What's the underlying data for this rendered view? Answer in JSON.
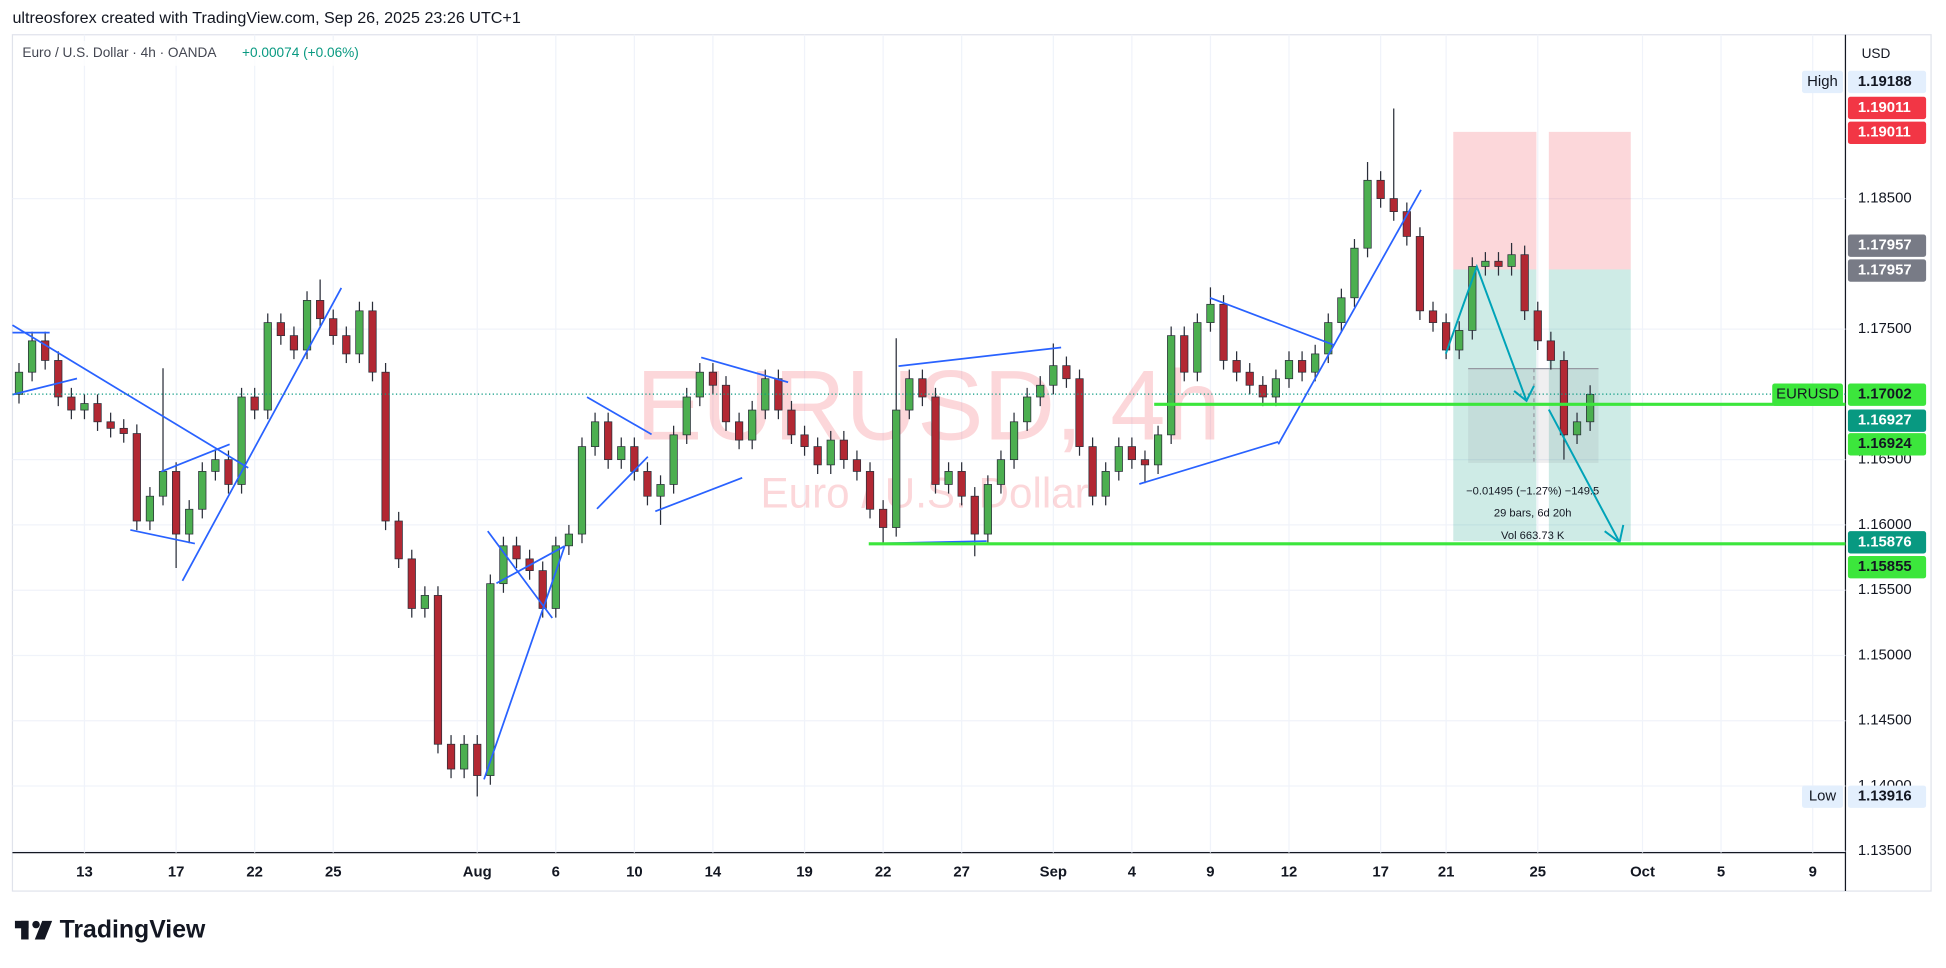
{
  "header": {
    "credit": "ultreosforex created with TradingView.com, Sep 26, 2025 23:26 UTC+1"
  },
  "chart_data": {
    "type": "candlestick",
    "symbol": "Euro / U.S. Dollar · 4h · OANDA",
    "change": "+0.00074 (+0.06%)",
    "watermark": "EURUSD, 4h",
    "watermark_sub": "Euro / U.S. Dollar",
    "currency": "USD",
    "categories": [
      null,
      null,
      null,
      null,
      null,
      "13",
      null,
      null,
      null,
      null,
      null,
      null,
      "17",
      null,
      null,
      null,
      null,
      null,
      "22",
      null,
      null,
      null,
      null,
      null,
      "25",
      null,
      null,
      null,
      null,
      null,
      null,
      null,
      null,
      null,
      null,
      "Aug",
      null,
      null,
      null,
      null,
      null,
      "6",
      null,
      null,
      null,
      null,
      null,
      "10",
      null,
      null,
      null,
      null,
      null,
      "14",
      null,
      null,
      null,
      null,
      null,
      null,
      "19",
      null,
      null,
      null,
      null,
      null,
      "22",
      null,
      null,
      null,
      null,
      null,
      "27",
      null,
      null,
      null,
      null,
      null,
      null,
      "Sep",
      null,
      null,
      null,
      null,
      null,
      "4",
      null,
      null,
      null,
      null,
      null,
      "9",
      null,
      null,
      null,
      null,
      null,
      "12",
      null,
      null,
      null,
      null,
      null,
      null,
      "17",
      null,
      null,
      null,
      null,
      "21",
      null,
      null,
      null,
      null,
      null,
      null,
      "25",
      null,
      null,
      null,
      null,
      null,
      null,
      null,
      "Oct",
      null,
      null,
      null,
      null,
      null,
      "5",
      null,
      null,
      null,
      null,
      null,
      null,
      "9",
      null,
      null
    ],
    "open": [
      1.17,
      1.1717,
      1.1741,
      1.1726,
      1.1698,
      1.1688,
      1.1693,
      1.1679,
      1.1674,
      1.167,
      1.1603,
      1.1622,
      1.1641,
      1.1593,
      1.1612,
      1.1641,
      1.165,
      1.1631,
      1.1698,
      1.1688,
      1.1755,
      1.1745,
      1.1734,
      1.1772,
      1.1758,
      1.1745,
      1.1731,
      1.1764,
      1.1717,
      1.1603,
      1.1574,
      1.1536,
      1.1546,
      1.1432,
      1.1413,
      1.1432,
      1.1408,
      1.1555,
      1.1584,
      1.1574,
      1.1565,
      1.1536,
      1.1584,
      1.1593,
      1.166,
      1.1679,
      1.165,
      1.166,
      1.1641,
      1.1622,
      1.1631,
      1.1669,
      1.1698,
      1.1717,
      1.1707,
      1.1679,
      1.1665,
      1.1688,
      1.1712,
      1.1688,
      1.1669,
      1.166,
      1.1646,
      1.1665,
      1.165,
      1.1641,
      1.1612,
      1.1598,
      1.1688,
      1.1712,
      1.1698,
      1.1631,
      1.1641,
      1.1622,
      1.1593,
      1.1631,
      1.165,
      1.1679,
      1.1698,
      1.1707,
      1.1722,
      1.1712,
      1.166,
      1.1622,
      1.1641,
      1.166,
      1.165,
      1.1646,
      1.1669,
      1.1745,
      1.1717,
      1.1755,
      1.1769,
      1.1726,
      1.1717,
      1.1707,
      1.1698,
      1.1712,
      1.1726,
      1.1717,
      1.1731,
      1.1755,
      1.1774,
      1.1812,
      1.1864,
      1.185,
      1.184,
      1.1821,
      1.1764,
      1.1755,
      1.1734,
      1.1749,
      1.1798,
      1.1802,
      1.1798,
      1.1807,
      1.1764,
      1.1741,
      1.1726,
      1.1669,
      1.1679,
      null,
      null,
      null,
      null,
      null,
      null,
      null,
      null,
      null,
      null,
      null,
      null,
      null,
      null,
      null,
      null,
      null,
      null,
      null
    ],
    "high": [
      1.1724,
      1.1748,
      1.1748,
      1.1733,
      1.1705,
      1.17,
      1.17,
      1.1686,
      1.1681,
      1.1677,
      1.1629,
      1.172,
      1.1648,
      1.1619,
      1.1648,
      1.1657,
      1.1657,
      1.1705,
      1.1705,
      1.1762,
      1.1762,
      1.1752,
      1.1779,
      1.1788,
      1.1765,
      1.1752,
      1.1771,
      1.1771,
      1.1724,
      1.161,
      1.1581,
      1.1553,
      1.1553,
      1.1439,
      1.1439,
      1.1439,
      1.1562,
      1.1591,
      1.1591,
      1.1581,
      1.1572,
      1.1591,
      1.16,
      1.1667,
      1.1686,
      1.1686,
      1.1667,
      1.1667,
      1.1648,
      1.1638,
      1.1676,
      1.1705,
      1.1724,
      1.1724,
      1.1714,
      1.1686,
      1.1695,
      1.1719,
      1.1719,
      1.1695,
      1.1676,
      1.1667,
      1.1672,
      1.1672,
      1.1657,
      1.1648,
      1.1619,
      1.1743,
      1.1719,
      1.1719,
      1.1705,
      1.1648,
      1.1648,
      1.1629,
      1.1638,
      1.1657,
      1.1686,
      1.1705,
      1.1714,
      1.1739,
      1.1729,
      1.1719,
      1.1667,
      1.1648,
      1.1667,
      1.1667,
      1.1657,
      1.1676,
      1.1752,
      1.1752,
      1.1762,
      1.1782,
      1.1776,
      1.1733,
      1.1724,
      1.1714,
      1.1719,
      1.1733,
      1.1733,
      1.1738,
      1.1762,
      1.1781,
      1.1819,
      1.1878,
      1.1871,
      1.1919,
      1.1847,
      1.1828,
      1.1771,
      1.1762,
      1.1756,
      1.1805,
      1.1809,
      1.1809,
      1.1816,
      1.1814,
      1.1771,
      1.1748,
      1.1733,
      1.1686,
      1.1707,
      null,
      null,
      null,
      null,
      null,
      null,
      null,
      null,
      null,
      null,
      null,
      null,
      null,
      null,
      null,
      null,
      null,
      null,
      null
    ],
    "low": [
      1.1693,
      1.171,
      1.1719,
      1.1691,
      1.1681,
      1.1681,
      1.1672,
      1.1667,
      1.1663,
      1.1596,
      1.1596,
      1.1615,
      1.1567,
      1.1586,
      1.1605,
      1.1634,
      1.1624,
      1.1624,
      1.1681,
      1.1681,
      1.1738,
      1.1727,
      1.1727,
      1.1751,
      1.1738,
      1.1724,
      1.1724,
      1.171,
      1.1596,
      1.1567,
      1.1529,
      1.1529,
      1.1425,
      1.1406,
      1.1406,
      1.1392,
      1.1401,
      1.1548,
      1.1567,
      1.1558,
      1.1529,
      1.1529,
      1.1577,
      1.1586,
      1.1653,
      1.1643,
      1.1643,
      1.1634,
      1.1615,
      1.16,
      1.1624,
      1.1662,
      1.1691,
      1.17,
      1.1672,
      1.1658,
      1.1658,
      1.1681,
      1.1681,
      1.1662,
      1.1653,
      1.1639,
      1.1639,
      1.1643,
      1.1634,
      1.1605,
      1.1586,
      1.1591,
      1.1681,
      1.1691,
      1.1624,
      1.1624,
      1.1615,
      1.1576,
      1.1586,
      1.1624,
      1.1643,
      1.1672,
      1.1691,
      1.17,
      1.1705,
      1.1653,
      1.1615,
      1.1615,
      1.1634,
      1.1643,
      1.1632,
      1.1639,
      1.1662,
      1.171,
      1.171,
      1.1748,
      1.1719,
      1.171,
      1.17,
      1.1691,
      1.1691,
      1.1705,
      1.171,
      1.171,
      1.1724,
      1.1748,
      1.1767,
      1.1805,
      1.1843,
      1.1833,
      1.1814,
      1.1757,
      1.1748,
      1.1727,
      1.1727,
      1.1742,
      1.1791,
      1.1791,
      1.1791,
      1.1757,
      1.1734,
      1.1719,
      1.165,
      1.1662,
      1.1672,
      null,
      null,
      null,
      null,
      null,
      null,
      null,
      null,
      null,
      null,
      null,
      null,
      null,
      null,
      null,
      null,
      null,
      null,
      null
    ],
    "close": [
      1.1717,
      1.1741,
      1.1726,
      1.1698,
      1.1688,
      1.1693,
      1.1679,
      1.1674,
      1.167,
      1.1603,
      1.1622,
      1.1641,
      1.1593,
      1.1612,
      1.1641,
      1.165,
      1.1631,
      1.1698,
      1.1688,
      1.1755,
      1.1745,
      1.1734,
      1.1772,
      1.1758,
      1.1745,
      1.1731,
      1.1764,
      1.1717,
      1.1603,
      1.1574,
      1.1536,
      1.1546,
      1.1432,
      1.1413,
      1.1432,
      1.1408,
      1.1555,
      1.1584,
      1.1574,
      1.1565,
      1.1536,
      1.1584,
      1.1593,
      1.166,
      1.1679,
      1.165,
      1.166,
      1.1641,
      1.1622,
      1.1631,
      1.1669,
      1.1698,
      1.1717,
      1.1707,
      1.1679,
      1.1665,
      1.1688,
      1.1712,
      1.1688,
      1.1669,
      1.166,
      1.1646,
      1.1665,
      1.165,
      1.1641,
      1.1612,
      1.1598,
      1.1688,
      1.1712,
      1.1698,
      1.1631,
      1.1641,
      1.1622,
      1.1593,
      1.1631,
      1.165,
      1.1679,
      1.1698,
      1.1707,
      1.1722,
      1.1712,
      1.166,
      1.1622,
      1.1641,
      1.166,
      1.165,
      1.1646,
      1.1669,
      1.1745,
      1.1717,
      1.1755,
      1.1769,
      1.1726,
      1.1717,
      1.1707,
      1.1698,
      1.1712,
      1.1726,
      1.1717,
      1.1731,
      1.1755,
      1.1774,
      1.1812,
      1.1864,
      1.185,
      1.184,
      1.1821,
      1.1764,
      1.1755,
      1.1734,
      1.1749,
      1.1798,
      1.1802,
      1.1798,
      1.1807,
      1.1764,
      1.1741,
      1.1726,
      1.1669,
      1.1679,
      1.17,
      null,
      null,
      null,
      null,
      null,
      null,
      null,
      null,
      null,
      null,
      null,
      null,
      null,
      null,
      null,
      null,
      null,
      null,
      null
    ],
    "up_color": "#4caf50",
    "down_color": "#b22833",
    "ylim": [
      1.1349,
      1.19755
    ],
    "yticks": [
      {
        "value": 1.135,
        "label": "1.13500"
      },
      {
        "value": 1.14,
        "label": "1.14000"
      },
      {
        "value": 1.145,
        "label": "1.14500"
      },
      {
        "value": 1.15,
        "label": "1.15000"
      },
      {
        "value": 1.155,
        "label": "1.15500"
      },
      {
        "value": 1.16,
        "label": "1.16000"
      },
      {
        "value": 1.165,
        "label": "1.16500"
      },
      {
        "value": 1.175,
        "label": "1.17500"
      },
      {
        "value": 1.185,
        "label": "1.18500"
      }
    ],
    "grid": true,
    "price_labels": [
      {
        "tag": "High",
        "value": 1.19188,
        "color": "#e3effd",
        "text_color": "#131722"
      },
      {
        "value": 1.19011,
        "color": "#f23645",
        "text_color": "#ffffff"
      },
      {
        "value": 1.19011,
        "color": "#f23645",
        "text_color": "#ffffff"
      },
      {
        "value": 1.17957,
        "color": "#787b86",
        "text_color": "#ffffff"
      },
      {
        "value": 1.17957,
        "color": "#787b86",
        "text_color": "#ffffff"
      },
      {
        "tag": "EURUSD",
        "value": 1.17002,
        "color": "#3ce63c",
        "text_color": "#131722"
      },
      {
        "value": 1.16927,
        "color": "#089981",
        "text_color": "#ffffff"
      },
      {
        "value": 1.16924,
        "color": "#3ce63c",
        "text_color": "#131722"
      },
      {
        "value": 1.15876,
        "color": "#089981",
        "text_color": "#ffffff"
      },
      {
        "value": 1.15855,
        "color": "#3ce63c",
        "text_color": "#131722"
      },
      {
        "tag": "Low",
        "value": 1.13916,
        "color": "#e3effd",
        "text_color": "#131722"
      }
    ],
    "measure": [
      "−0.01495 (−1.27%) −149.5",
      "29 bars, 6d 20h",
      "Vol 663.73 K"
    ]
  },
  "footer": {
    "logo": "TradingView"
  }
}
